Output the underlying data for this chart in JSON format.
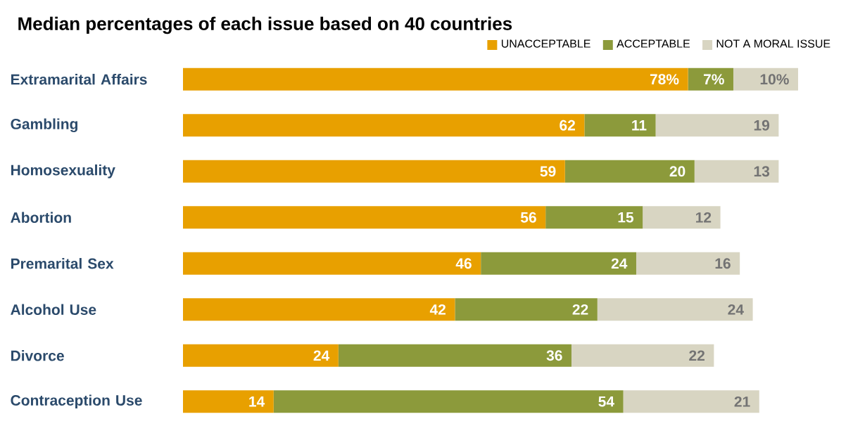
{
  "chart_data": {
    "type": "bar",
    "orientation": "horizontal",
    "stacked": true,
    "legend": "top right",
    "title": "Median percentages of each issue based on 40 countries",
    "categories": [
      "Extramarital Affairs",
      "Gambling",
      "Homosexuality",
      "Abortion",
      "Premarital Sex",
      "Alcohol Use",
      "Divorce",
      "Contraception Use"
    ],
    "series": [
      {
        "name": "UNACCEPTABLE",
        "color": "#e8a000",
        "values": [
          78,
          62,
          59,
          56,
          46,
          42,
          24,
          14
        ],
        "value_labels": [
          "78%",
          "62",
          "59",
          "56",
          "46",
          "42",
          "24",
          "14"
        ]
      },
      {
        "name": "ACCEPTABLE",
        "color": "#8c9a3b",
        "values": [
          7,
          11,
          20,
          15,
          24,
          22,
          36,
          54
        ],
        "value_labels": [
          "7%",
          "11",
          "20",
          "15",
          "24",
          "22",
          "36",
          "54"
        ]
      },
      {
        "name": "NOT A MORAL ISSUE",
        "color": "#d8d5c2",
        "values": [
          10,
          19,
          13,
          12,
          16,
          24,
          22,
          21
        ],
        "value_labels": [
          "10%",
          "19",
          "13",
          "12",
          "16",
          "24",
          "22",
          "21"
        ]
      }
    ]
  }
}
